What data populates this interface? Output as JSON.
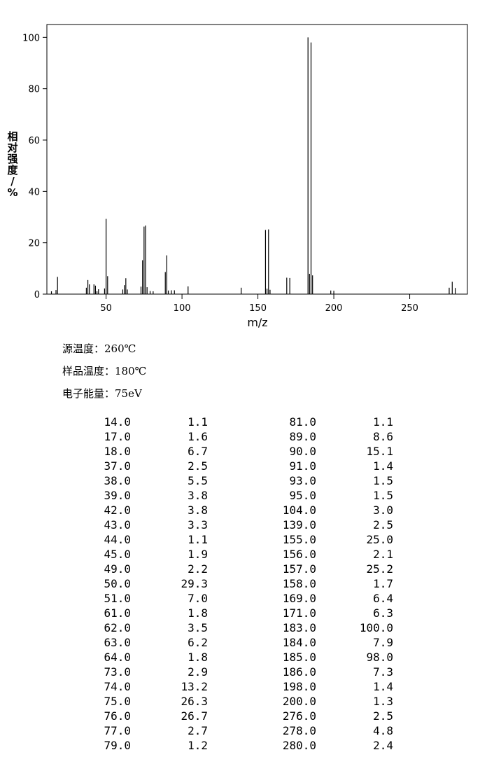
{
  "chart_data": {
    "type": "bar",
    "xlabel": "m/z",
    "ylabel": "相对强度/%",
    "x": [
      14,
      17,
      18,
      37,
      38,
      39,
      42,
      43,
      44,
      45,
      49,
      50,
      51,
      61,
      62,
      63,
      64,
      73,
      74,
      75,
      76,
      77,
      79,
      81,
      89,
      90,
      91,
      93,
      95,
      104,
      139,
      155,
      156,
      157,
      158,
      169,
      171,
      183,
      184,
      185,
      186,
      198,
      200,
      276,
      278,
      280
    ],
    "values": [
      1.1,
      1.6,
      6.7,
      2.5,
      5.5,
      3.8,
      3.8,
      3.3,
      1.1,
      1.9,
      2.2,
      29.3,
      7.0,
      1.8,
      3.5,
      6.2,
      1.8,
      2.9,
      13.2,
      26.3,
      26.7,
      2.7,
      1.2,
      1.1,
      8.6,
      15.1,
      1.4,
      1.5,
      1.5,
      3.0,
      2.5,
      25.0,
      2.1,
      25.2,
      1.7,
      6.4,
      6.3,
      100,
      7.9,
      98.0,
      7.3,
      1.4,
      1.3,
      2.5,
      4.8,
      2.4
    ],
    "color": "#000000",
    "xlim": [
      11,
      288
    ],
    "xticks": [
      50,
      100,
      150,
      200,
      250
    ],
    "ylim": [
      0,
      105
    ],
    "yticks": [
      0,
      20,
      40,
      60,
      80,
      100
    ]
  },
  "info": [
    "源温度：260℃",
    "样品温度：180℃",
    "电子能量：75eV"
  ],
  "table": {
    "rows": [
      [
        "14.0",
        "1.1",
        "81.0",
        "1.1"
      ],
      [
        "17.0",
        "1.6",
        "89.0",
        "8.6"
      ],
      [
        "18.0",
        "6.7",
        "90.0",
        "15.1"
      ],
      [
        "37.0",
        "2.5",
        "91.0",
        "1.4"
      ],
      [
        "38.0",
        "5.5",
        "93.0",
        "1.5"
      ],
      [
        "39.0",
        "3.8",
        "95.0",
        "1.5"
      ],
      [
        "42.0",
        "3.8",
        "104.0",
        "3.0"
      ],
      [
        "43.0",
        "3.3",
        "139.0",
        "2.5"
      ],
      [
        "44.0",
        "1.1",
        "155.0",
        "25.0"
      ],
      [
        "45.0",
        "1.9",
        "156.0",
        "2.1"
      ],
      [
        "49.0",
        "2.2",
        "157.0",
        "25.2"
      ],
      [
        "50.0",
        "29.3",
        "158.0",
        "1.7"
      ],
      [
        "51.0",
        "7.0",
        "169.0",
        "6.4"
      ],
      [
        "61.0",
        "1.8",
        "171.0",
        "6.3"
      ],
      [
        "62.0",
        "3.5",
        "183.0",
        "100.0"
      ],
      [
        "63.0",
        "6.2",
        "184.0",
        "7.9"
      ],
      [
        "64.0",
        "1.8",
        "185.0",
        "98.0"
      ],
      [
        "73.0",
        "2.9",
        "186.0",
        "7.3"
      ],
      [
        "74.0",
        "13.2",
        "198.0",
        "1.4"
      ],
      [
        "75.0",
        "26.3",
        "200.0",
        "1.3"
      ],
      [
        "76.0",
        "26.7",
        "276.0",
        "2.5"
      ],
      [
        "77.0",
        "2.7",
        "278.0",
        "4.8"
      ],
      [
        "79.0",
        "1.2",
        "280.0",
        "2.4"
      ]
    ]
  }
}
